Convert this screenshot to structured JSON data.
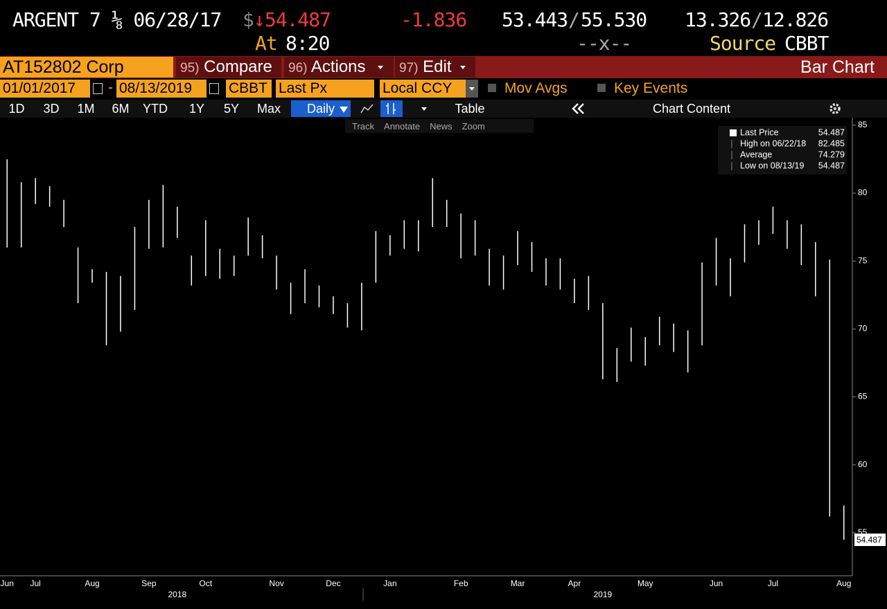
{
  "header": {
    "security": "ARGENT 7 ⅛ 06/28/17",
    "currency": "$",
    "price": "↓54.487",
    "change": "-1.836",
    "bid": "53.443",
    "separator": "/",
    "ask": "55.530",
    "bid_yield": "13.326",
    "ask_yield": "12.826",
    "time_label": "At",
    "time": "8:20",
    "size": "--x--",
    "source_label": "Source",
    "source": "CBBT"
  },
  "toolbar": {
    "ticker": "AT152802 Corp",
    "menu": [
      {
        "num": "95)",
        "label": "Compare"
      },
      {
        "num": "96)",
        "label": "Actions"
      },
      {
        "num": "97)",
        "label": "Edit"
      }
    ],
    "view": "Bar Chart",
    "start_date": "01/01/2017",
    "dash": "-",
    "end_date": "08/13/2019",
    "pricing_source": "CBBT",
    "field": "Last Px",
    "currency": "Local CCY",
    "mov_avgs": "Mov Avgs",
    "key_events": "Key Events",
    "periods": [
      "1D",
      "3D",
      "1M",
      "6M",
      "YTD",
      "1Y",
      "5Y",
      "Max"
    ],
    "frequency": "Daily",
    "table": "Table",
    "chart_content": "Chart Content",
    "tools": [
      "Track",
      "Annotate",
      "News",
      "Zoom"
    ]
  },
  "chart_data": {
    "type": "ohlc",
    "categories": [
      "Jun",
      null,
      "Jul",
      null,
      null,
      null,
      "Aug",
      null,
      null,
      null,
      "Sep",
      null,
      null,
      null,
      "Oct",
      null,
      null,
      null,
      null,
      "Nov",
      null,
      null,
      null,
      "Dec",
      null,
      null,
      null,
      "Jan",
      null,
      null,
      null,
      null,
      "Feb",
      null,
      null,
      null,
      "Mar",
      null,
      null,
      null,
      "Apr",
      null,
      null,
      null,
      null,
      "May",
      null,
      null,
      null,
      null,
      "Jun",
      null,
      null,
      null,
      "Jul",
      null,
      null,
      null,
      null,
      "Aug"
    ],
    "year_labels": [
      "2018",
      "2019"
    ],
    "high": [
      82.485,
      80.8,
      81.1,
      80.5,
      79.5,
      76.0,
      74.4,
      74.2,
      73.9,
      77.5,
      79.5,
      80.6,
      79.0,
      75.4,
      78.0,
      75.9,
      75.4,
      78.2,
      76.9,
      75.4,
      73.4,
      74.4,
      73.2,
      72.4,
      71.9,
      73.4,
      77.2,
      76.9,
      78.0,
      78.0,
      81.1,
      79.5,
      78.5,
      78.0,
      75.9,
      75.4,
      77.2,
      76.4,
      75.2,
      75.2,
      73.7,
      73.9,
      71.9,
      68.6,
      70.1,
      69.4,
      70.9,
      70.4,
      69.9,
      74.9,
      76.7,
      75.2,
      77.7,
      78.0,
      79.0,
      78.0,
      77.7,
      76.4,
      75.1,
      57.0
    ],
    "low": [
      76.0,
      76.0,
      79.2,
      79.0,
      77.5,
      71.9,
      73.4,
      68.8,
      69.8,
      71.4,
      75.9,
      76.0,
      76.7,
      73.2,
      73.9,
      73.7,
      73.9,
      75.4,
      75.2,
      72.9,
      71.1,
      71.9,
      71.6,
      71.1,
      70.1,
      69.9,
      73.4,
      75.4,
      75.9,
      75.7,
      77.5,
      77.5,
      75.2,
      75.4,
      73.2,
      72.9,
      74.7,
      74.2,
      73.2,
      72.9,
      71.9,
      71.4,
      66.3,
      66.1,
      67.6,
      67.3,
      68.8,
      68.3,
      66.8,
      68.8,
      73.2,
      72.4,
      74.9,
      76.2,
      77.0,
      75.9,
      74.7,
      72.4,
      56.2,
      54.487
    ],
    "color": "#ffffff",
    "ylim": [
      52.5,
      85.5
    ],
    "yticks": [
      55,
      60,
      65,
      70,
      75,
      80,
      85
    ],
    "stats": [
      {
        "label": "Last Price",
        "value": 54.487
      },
      {
        "label": "High on 06/22/18",
        "value": 82.485
      },
      {
        "label": "Average",
        "value": 74.279
      },
      {
        "label": "Low on 08/13/19",
        "value": 54.487
      }
    ]
  }
}
